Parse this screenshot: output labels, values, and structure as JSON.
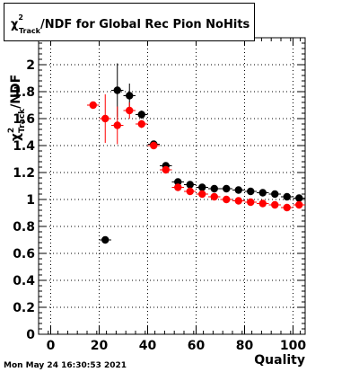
{
  "chart_data": {
    "type": "scatter",
    "title": {
      "symbol": "χ",
      "superscript": "2",
      "subscript": "Track",
      "rest": "/NDF for Global Rec Pion NoHits"
    },
    "ylabel": {
      "symbol": "χ",
      "superscript": "2",
      "subscript": "Track",
      "rest": "/NDF"
    },
    "xlabel": "Quality",
    "xlim": [
      -5,
      105
    ],
    "ylim": [
      0,
      2.2
    ],
    "x_ticks": [
      "0",
      "20",
      "40",
      "60",
      "80",
      "100"
    ],
    "y_ticks": [
      "0",
      "0.2",
      "0.4",
      "0.6",
      "0.8",
      "1",
      "1.2",
      "1.4",
      "1.6",
      "1.8",
      "2"
    ],
    "grid": true,
    "series": [
      {
        "color": "#000000",
        "points": [
          {
            "x": 22.5,
            "y": 0.7,
            "yerr": 0.02
          },
          {
            "x": 27.5,
            "y": 1.81,
            "yerr": 0.2
          },
          {
            "x": 32.5,
            "y": 1.77,
            "yerr": 0.09
          },
          {
            "x": 37.5,
            "y": 1.63,
            "yerr": 0.03
          },
          {
            "x": 42.5,
            "y": 1.41,
            "yerr": 0.02
          },
          {
            "x": 47.5,
            "y": 1.25,
            "yerr": 0.01
          },
          {
            "x": 52.5,
            "y": 1.13,
            "yerr": 0.01
          },
          {
            "x": 57.5,
            "y": 1.11,
            "yerr": 0.01
          },
          {
            "x": 62.5,
            "y": 1.09,
            "yerr": 0.01
          },
          {
            "x": 67.5,
            "y": 1.08,
            "yerr": 0.01
          },
          {
            "x": 72.5,
            "y": 1.08,
            "yerr": 0.01
          },
          {
            "x": 77.5,
            "y": 1.07,
            "yerr": 0.01
          },
          {
            "x": 82.5,
            "y": 1.06,
            "yerr": 0.01
          },
          {
            "x": 87.5,
            "y": 1.05,
            "yerr": 0.01
          },
          {
            "x": 92.5,
            "y": 1.04,
            "yerr": 0.01
          },
          {
            "x": 97.5,
            "y": 1.02,
            "yerr": 0.01
          },
          {
            "x": 102.5,
            "y": 1.01,
            "yerr": 0.01
          }
        ]
      },
      {
        "color": "#ff0000",
        "points": [
          {
            "x": 17.5,
            "y": 1.7,
            "yerr": 0.01
          },
          {
            "x": 22.5,
            "y": 1.6,
            "yerr": 0.18
          },
          {
            "x": 27.5,
            "y": 1.55,
            "yerr": 0.14
          },
          {
            "x": 32.5,
            "y": 1.66,
            "yerr": 0.06
          },
          {
            "x": 37.5,
            "y": 1.56,
            "yerr": 0.03
          },
          {
            "x": 42.5,
            "y": 1.4,
            "yerr": 0.02
          },
          {
            "x": 47.5,
            "y": 1.22,
            "yerr": 0.01
          },
          {
            "x": 52.5,
            "y": 1.09,
            "yerr": 0.01
          },
          {
            "x": 57.5,
            "y": 1.06,
            "yerr": 0.01
          },
          {
            "x": 62.5,
            "y": 1.04,
            "yerr": 0.01
          },
          {
            "x": 67.5,
            "y": 1.02,
            "yerr": 0.01
          },
          {
            "x": 72.5,
            "y": 1.0,
            "yerr": 0.01
          },
          {
            "x": 77.5,
            "y": 0.99,
            "yerr": 0.01
          },
          {
            "x": 82.5,
            "y": 0.98,
            "yerr": 0.01
          },
          {
            "x": 87.5,
            "y": 0.97,
            "yerr": 0.01
          },
          {
            "x": 92.5,
            "y": 0.96,
            "yerr": 0.01
          },
          {
            "x": 97.5,
            "y": 0.94,
            "yerr": 0.01
          },
          {
            "x": 102.5,
            "y": 0.96,
            "yerr": 0.01
          }
        ]
      }
    ]
  },
  "footer": {
    "timestamp": "Mon May 24 16:30:53 2021"
  }
}
